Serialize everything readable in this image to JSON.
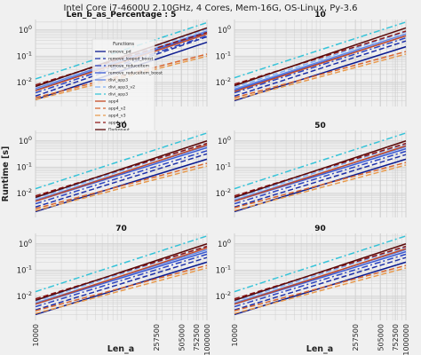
{
  "figure": {
    "suptitle": "Intel Core i7-4600U 2.10GHz, 4 Cores, Mem-16G, OS-Linux, Py-3.6",
    "ylabel": "Runtime [s]",
    "xlabel": "Len_a",
    "legend_title": "Functions"
  },
  "colors": {
    "background": "#f0f0f0",
    "grid": "#cfcfcf",
    "text": "#222222"
  },
  "chart_data": [
    {
      "type": "line",
      "title": "Len_b_as_Percentage : 5",
      "x": [
        10000,
        1000000
      ],
      "xscale": "log",
      "yscale": "log",
      "xticks": [
        10000,
        257500,
        505000,
        752500,
        1000000
      ],
      "yticks": [
        0.01,
        0.1,
        1
      ],
      "ylim": [
        0.0012,
        2.5
      ],
      "legend": "upper-left",
      "grid": true,
      "series": [
        {
          "name": "remove_pd",
          "color": "#0b1a8f",
          "dash": "solid",
          "values": [
            0.0022,
            0.34
          ]
        },
        {
          "name": "remove_looped_boost",
          "color": "#1d2fa8",
          "dash": "dashed",
          "values": [
            0.003,
            0.55
          ]
        },
        {
          "name": "remove_reduceitem",
          "color": "#2c45c2",
          "dash": "dashdot",
          "values": [
            0.004,
            0.6
          ]
        },
        {
          "name": "remove_reduceitem_boost",
          "color": "#3a5bd5",
          "dash": "solid",
          "values": [
            0.005,
            0.8
          ]
        },
        {
          "name": "divi_app3",
          "color": "#5f86e6",
          "dash": "solid",
          "values": [
            0.0058,
            0.9
          ]
        },
        {
          "name": "divi_app3_v2",
          "color": "#7fb0f5",
          "dash": "dashed",
          "values": [
            0.0068,
            1.1
          ]
        },
        {
          "name": "divi_app3",
          "color": "#34c3d8",
          "dash": "dashdot",
          "values": [
            0.0135,
            1.9
          ]
        },
        {
          "name": "app4",
          "color": "#c54a25",
          "dash": "solid",
          "values": [
            0.0048,
            0.7
          ]
        },
        {
          "name": "app4_v2",
          "color": "#d8652e",
          "dash": "dashed",
          "values": [
            0.0026,
            0.12
          ]
        },
        {
          "name": "app4_v3",
          "color": "#e89a4c",
          "dash": "dashed",
          "values": [
            0.0022,
            0.1
          ]
        },
        {
          "name": "app4_v4",
          "color": "#8e1717",
          "dash": "dashed",
          "values": [
            0.008,
            0.8
          ]
        },
        {
          "name": "Darkonaut",
          "color": "#5a0a0a",
          "dash": "solid",
          "values": [
            0.007,
            1.2
          ]
        }
      ]
    },
    {
      "type": "line",
      "title": "10",
      "x": [
        10000,
        1000000
      ],
      "xscale": "log",
      "yscale": "log",
      "xticks": [
        10000,
        257500,
        505000,
        752500,
        1000000
      ],
      "yticks": [
        0.01,
        0.1,
        1
      ],
      "ylim": [
        0.0012,
        2.5
      ],
      "grid": true,
      "series": [
        {
          "name": "remove_pd",
          "color": "#0b1a8f",
          "dash": "solid",
          "values": [
            0.002,
            0.23
          ]
        },
        {
          "name": "remove_looped_boost",
          "color": "#1d2fa8",
          "dash": "dashed",
          "values": [
            0.003,
            0.38
          ]
        },
        {
          "name": "remove_reduceitem",
          "color": "#2c45c2",
          "dash": "dashdot",
          "values": [
            0.004,
            0.5
          ]
        },
        {
          "name": "remove_reduceitem_boost",
          "color": "#3a5bd5",
          "dash": "solid",
          "values": [
            0.005,
            0.6
          ]
        },
        {
          "name": "divi_app3",
          "color": "#5f86e6",
          "dash": "solid",
          "values": [
            0.0055,
            0.7
          ]
        },
        {
          "name": "divi_app3_v2",
          "color": "#7fb0f5",
          "dash": "dashed",
          "values": [
            0.0065,
            0.85
          ]
        },
        {
          "name": "divi_app3",
          "color": "#34c3d8",
          "dash": "dashdot",
          "values": [
            0.015,
            2.0
          ]
        },
        {
          "name": "app4",
          "color": "#c54a25",
          "dash": "solid",
          "values": [
            0.0045,
            0.6
          ]
        },
        {
          "name": "app4_v2",
          "color": "#d8652e",
          "dash": "dashed",
          "values": [
            0.0026,
            0.15
          ]
        },
        {
          "name": "app4_v3",
          "color": "#e89a4c",
          "dash": "dashed",
          "values": [
            0.0022,
            0.12
          ]
        },
        {
          "name": "app4_v4",
          "color": "#8e1717",
          "dash": "dashed",
          "values": [
            0.0085,
            0.9
          ]
        },
        {
          "name": "Darkonaut",
          "color": "#5a0a0a",
          "dash": "solid",
          "values": [
            0.0075,
            1.2
          ]
        }
      ]
    },
    {
      "type": "line",
      "title": "30",
      "x": [
        10000,
        1000000
      ],
      "xscale": "log",
      "yscale": "log",
      "xticks": [
        10000,
        257500,
        505000,
        752500,
        1000000
      ],
      "yticks": [
        0.01,
        0.1,
        1
      ],
      "ylim": [
        0.0012,
        2.5
      ],
      "grid": true,
      "series": [
        {
          "name": "remove_pd",
          "color": "#0b1a8f",
          "dash": "solid",
          "values": [
            0.002,
            0.2
          ]
        },
        {
          "name": "remove_looped_boost",
          "color": "#1d2fa8",
          "dash": "dashed",
          "values": [
            0.003,
            0.32
          ]
        },
        {
          "name": "remove_reduceitem",
          "color": "#2c45c2",
          "dash": "dashdot",
          "values": [
            0.004,
            0.42
          ]
        },
        {
          "name": "remove_reduceitem_boost",
          "color": "#3a5bd5",
          "dash": "solid",
          "values": [
            0.005,
            0.55
          ]
        },
        {
          "name": "divi_app3",
          "color": "#5f86e6",
          "dash": "solid",
          "values": [
            0.0055,
            0.65
          ]
        },
        {
          "name": "divi_app3_v2",
          "color": "#7fb0f5",
          "dash": "dashed",
          "values": [
            0.0065,
            0.8
          ]
        },
        {
          "name": "divi_app3",
          "color": "#34c3d8",
          "dash": "dashdot",
          "values": [
            0.015,
            2.0
          ]
        },
        {
          "name": "app4",
          "color": "#c54a25",
          "dash": "solid",
          "values": [
            0.005,
            0.7
          ]
        },
        {
          "name": "app4_v2",
          "color": "#d8652e",
          "dash": "dashed",
          "values": [
            0.0026,
            0.14
          ]
        },
        {
          "name": "app4_v3",
          "color": "#e89a4c",
          "dash": "dashed",
          "values": [
            0.0022,
            0.11
          ]
        },
        {
          "name": "app4_v4",
          "color": "#8e1717",
          "dash": "dashed",
          "values": [
            0.008,
            0.8
          ]
        },
        {
          "name": "Darkonaut",
          "color": "#5a0a0a",
          "dash": "solid",
          "values": [
            0.007,
            1.0
          ]
        }
      ]
    },
    {
      "type": "line",
      "title": "50",
      "x": [
        10000,
        1000000
      ],
      "xscale": "log",
      "yscale": "log",
      "xticks": [
        10000,
        257500,
        505000,
        752500,
        1000000
      ],
      "yticks": [
        0.01,
        0.1,
        1
      ],
      "ylim": [
        0.0012,
        2.5
      ],
      "grid": true,
      "series": [
        {
          "name": "remove_pd",
          "color": "#0b1a8f",
          "dash": "solid",
          "values": [
            0.002,
            0.2
          ]
        },
        {
          "name": "remove_looped_boost",
          "color": "#1d2fa8",
          "dash": "dashed",
          "values": [
            0.003,
            0.3
          ]
        },
        {
          "name": "remove_reduceitem",
          "color": "#2c45c2",
          "dash": "dashdot",
          "values": [
            0.004,
            0.4
          ]
        },
        {
          "name": "remove_reduceitem_boost",
          "color": "#3a5bd5",
          "dash": "solid",
          "values": [
            0.005,
            0.5
          ]
        },
        {
          "name": "divi_app3",
          "color": "#5f86e6",
          "dash": "solid",
          "values": [
            0.0055,
            0.6
          ]
        },
        {
          "name": "divi_app3_v2",
          "color": "#7fb0f5",
          "dash": "dashed",
          "values": [
            0.0065,
            0.75
          ]
        },
        {
          "name": "divi_app3",
          "color": "#34c3d8",
          "dash": "dashdot",
          "values": [
            0.015,
            2.0
          ]
        },
        {
          "name": "app4",
          "color": "#c54a25",
          "dash": "solid",
          "values": [
            0.005,
            0.65
          ]
        },
        {
          "name": "app4_v2",
          "color": "#d8652e",
          "dash": "dashed",
          "values": [
            0.0028,
            0.15
          ]
        },
        {
          "name": "app4_v3",
          "color": "#e89a4c",
          "dash": "dashed",
          "values": [
            0.0022,
            0.12
          ]
        },
        {
          "name": "app4_v4",
          "color": "#8e1717",
          "dash": "dashed",
          "values": [
            0.008,
            0.8
          ]
        },
        {
          "name": "Darkonaut",
          "color": "#5a0a0a",
          "dash": "solid",
          "values": [
            0.007,
            1.0
          ]
        }
      ]
    },
    {
      "type": "line",
      "title": "70",
      "x": [
        10000,
        1000000
      ],
      "xscale": "log",
      "yscale": "log",
      "xticks": [
        10000,
        257500,
        505000,
        752500,
        1000000
      ],
      "yticks": [
        0.01,
        0.1,
        1
      ],
      "ylim": [
        0.0012,
        2.5
      ],
      "grid": true,
      "series": [
        {
          "name": "remove_pd",
          "color": "#0b1a8f",
          "dash": "solid",
          "values": [
            0.002,
            0.2
          ]
        },
        {
          "name": "remove_looped_boost",
          "color": "#1d2fa8",
          "dash": "dashed",
          "values": [
            0.003,
            0.3
          ]
        },
        {
          "name": "remove_reduceitem",
          "color": "#2c45c2",
          "dash": "dashdot",
          "values": [
            0.004,
            0.4
          ]
        },
        {
          "name": "remove_reduceitem_boost",
          "color": "#3a5bd5",
          "dash": "solid",
          "values": [
            0.005,
            0.5
          ]
        },
        {
          "name": "divi_app3",
          "color": "#5f86e6",
          "dash": "solid",
          "values": [
            0.0055,
            0.6
          ]
        },
        {
          "name": "divi_app3_v2",
          "color": "#7fb0f5",
          "dash": "dashed",
          "values": [
            0.0065,
            0.8
          ]
        },
        {
          "name": "divi_app3",
          "color": "#34c3d8",
          "dash": "dashdot",
          "values": [
            0.015,
            2.0
          ]
        },
        {
          "name": "app4",
          "color": "#c54a25",
          "dash": "solid",
          "values": [
            0.005,
            0.7
          ]
        },
        {
          "name": "app4_v2",
          "color": "#d8652e",
          "dash": "dashed",
          "values": [
            0.0028,
            0.15
          ]
        },
        {
          "name": "app4_v3",
          "color": "#e89a4c",
          "dash": "dashed",
          "values": [
            0.0022,
            0.12
          ]
        },
        {
          "name": "app4_v4",
          "color": "#8e1717",
          "dash": "dashed",
          "values": [
            0.008,
            0.8
          ]
        },
        {
          "name": "Darkonaut",
          "color": "#5a0a0a",
          "dash": "solid",
          "values": [
            0.007,
            1.0
          ]
        }
      ]
    },
    {
      "type": "line",
      "title": "90",
      "x": [
        10000,
        1000000
      ],
      "xscale": "log",
      "yscale": "log",
      "xticks": [
        10000,
        257500,
        505000,
        752500,
        1000000
      ],
      "yticks": [
        0.01,
        0.1,
        1
      ],
      "ylim": [
        0.0012,
        2.5
      ],
      "grid": true,
      "series": [
        {
          "name": "remove_pd",
          "color": "#0b1a8f",
          "dash": "solid",
          "values": [
            0.002,
            0.2
          ]
        },
        {
          "name": "remove_looped_boost",
          "color": "#1d2fa8",
          "dash": "dashed",
          "values": [
            0.003,
            0.3
          ]
        },
        {
          "name": "remove_reduceitem",
          "color": "#2c45c2",
          "dash": "dashdot",
          "values": [
            0.004,
            0.4
          ]
        },
        {
          "name": "remove_reduceitem_boost",
          "color": "#3a5bd5",
          "dash": "solid",
          "values": [
            0.005,
            0.5
          ]
        },
        {
          "name": "divi_app3",
          "color": "#5f86e6",
          "dash": "solid",
          "values": [
            0.0055,
            0.6
          ]
        },
        {
          "name": "divi_app3_v2",
          "color": "#7fb0f5",
          "dash": "dashed",
          "values": [
            0.0065,
            0.75
          ]
        },
        {
          "name": "divi_app3",
          "color": "#34c3d8",
          "dash": "dashdot",
          "values": [
            0.015,
            2.0
          ]
        },
        {
          "name": "app4",
          "color": "#c54a25",
          "dash": "solid",
          "values": [
            0.005,
            0.65
          ]
        },
        {
          "name": "app4_v2",
          "color": "#d8652e",
          "dash": "dashed",
          "values": [
            0.0028,
            0.15
          ]
        },
        {
          "name": "app4_v3",
          "color": "#e89a4c",
          "dash": "dashed",
          "values": [
            0.0022,
            0.12
          ]
        },
        {
          "name": "app4_v4",
          "color": "#8e1717",
          "dash": "dashed",
          "values": [
            0.008,
            0.8
          ]
        },
        {
          "name": "Darkonaut",
          "color": "#5a0a0a",
          "dash": "solid",
          "values": [
            0.007,
            1.0
          ]
        }
      ]
    }
  ]
}
